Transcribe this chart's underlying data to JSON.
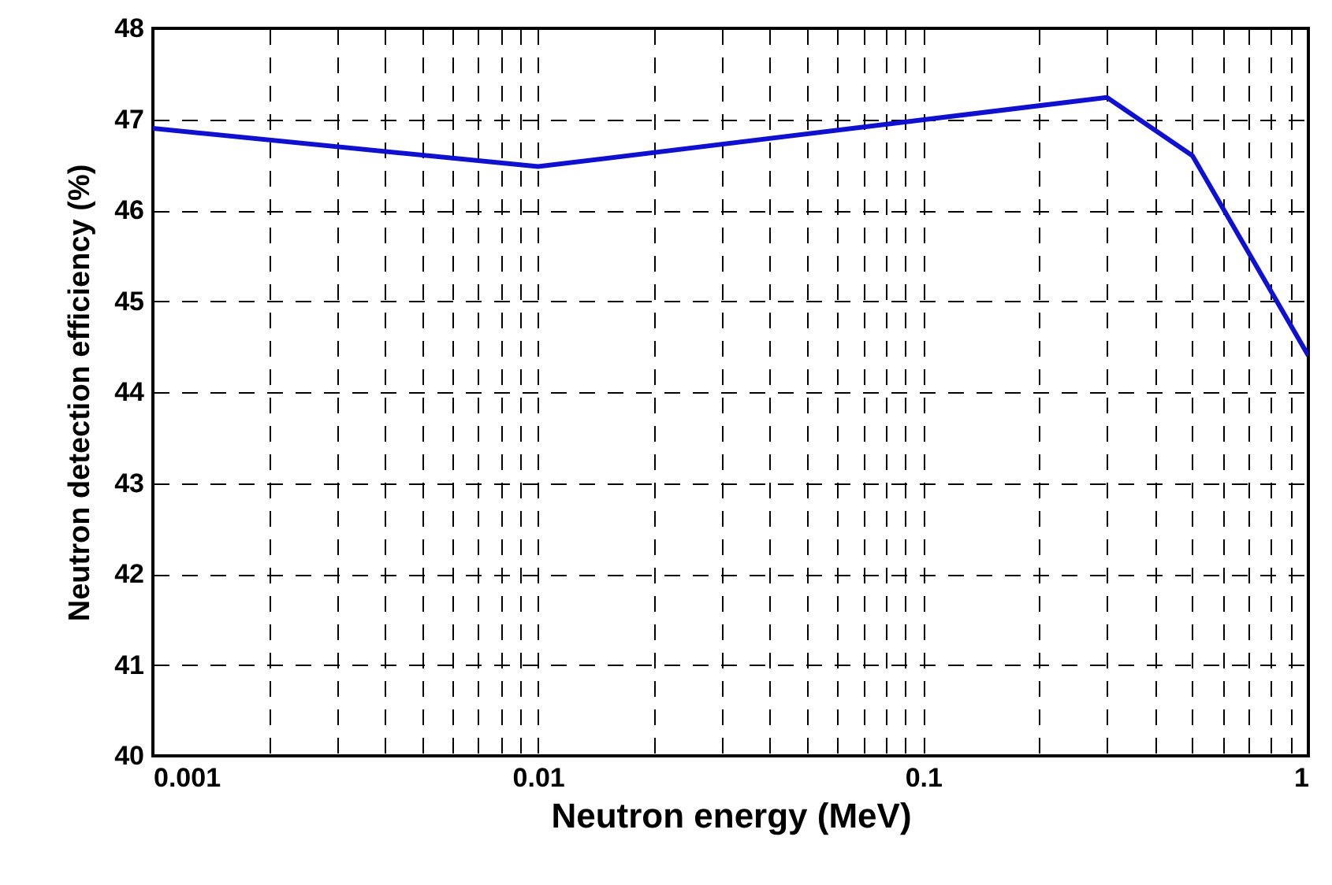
{
  "chart_data": {
    "type": "line",
    "xlabel": "Neutron energy (MeV)",
    "ylabel": "Neutron detection efficiency (%)",
    "x": [
      0.001,
      0.01,
      0.3,
      0.5,
      1
    ],
    "series": [
      {
        "color": "#1010d0",
        "values": [
          46.9,
          46.48,
          47.24,
          46.6,
          44.4
        ]
      }
    ],
    "log": "x",
    "xlim": [
      0.001,
      1
    ],
    "ylim": [
      40,
      48
    ],
    "xticks": [
      0.001,
      {
        "value": 0.002,
        "label": null
      },
      {
        "value": 0.003,
        "label": null
      },
      {
        "value": 0.004,
        "label": null
      },
      {
        "value": 0.005,
        "label": null
      },
      {
        "value": 0.006,
        "label": null
      },
      {
        "value": 0.007,
        "label": null
      },
      {
        "value": 0.008,
        "label": null
      },
      {
        "value": 0.009,
        "label": null
      },
      0.01,
      {
        "value": 0.02,
        "label": null
      },
      {
        "value": 0.03,
        "label": null
      },
      {
        "value": 0.04,
        "label": null
      },
      {
        "value": 0.05,
        "label": null
      },
      {
        "value": 0.06,
        "label": null
      },
      {
        "value": 0.07,
        "label": null
      },
      {
        "value": 0.08,
        "label": null
      },
      {
        "value": 0.09,
        "label": null
      },
      0.1,
      {
        "value": 0.2,
        "label": null
      },
      {
        "value": 0.3,
        "label": null
      },
      {
        "value": 0.4,
        "label": null
      },
      {
        "value": 0.5,
        "label": null
      },
      {
        "value": 0.6,
        "label": null
      },
      {
        "value": 0.7,
        "label": null
      },
      {
        "value": 0.8,
        "label": null
      },
      {
        "value": 0.9,
        "label": null
      },
      1
    ],
    "yticks": [
      40,
      41,
      42,
      43,
      44,
      45,
      46,
      47,
      48
    ],
    "grid": true,
    "line_style": "solid"
  }
}
